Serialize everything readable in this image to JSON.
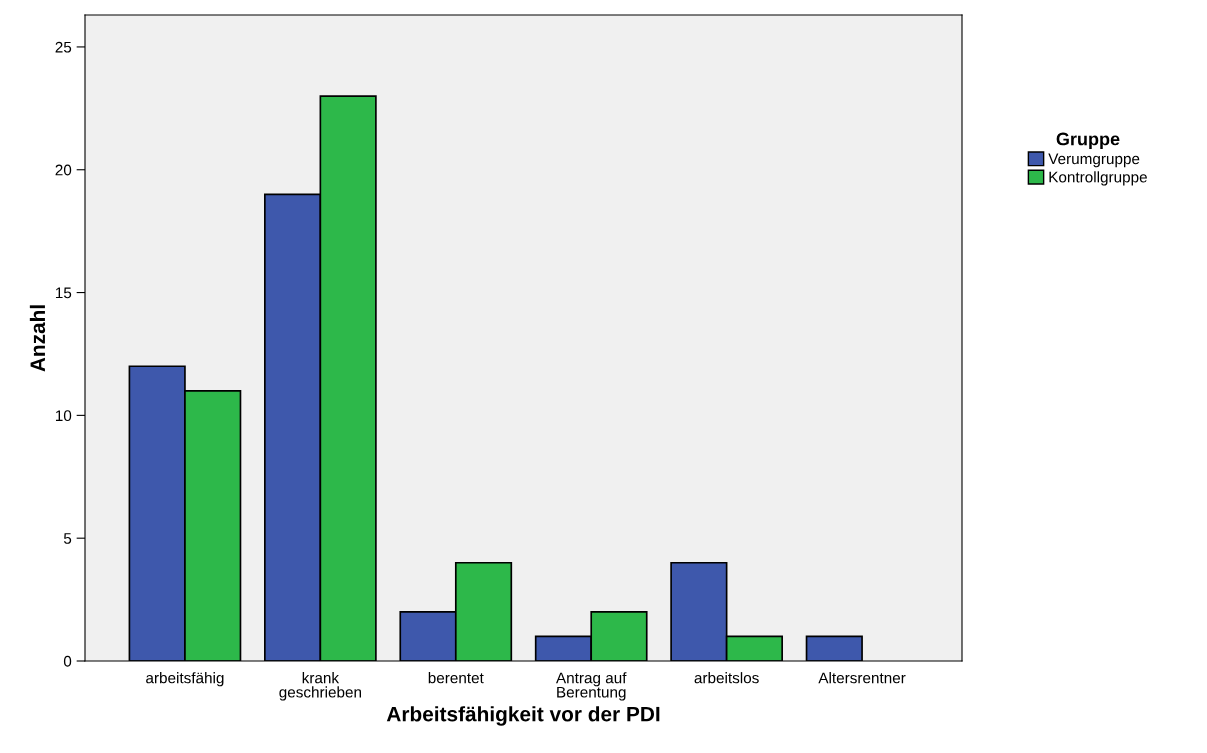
{
  "chart_data": {
    "type": "bar",
    "xlabel": "Arbeitsfähigkeit vor der PDI",
    "ylabel": "Anzahl",
    "legend_title": "Gruppe",
    "categories": [
      "arbeitsfähig",
      "krank\ngeschrieben",
      "berentet",
      "Antrag auf\nBerentung",
      "arbeitslos",
      "Altersrentner"
    ],
    "series": [
      {
        "name": "Verumgruppe",
        "color": "#3e58ac",
        "values": [
          12,
          19,
          2,
          1,
          4,
          1
        ]
      },
      {
        "name": "Kontrollgruppe",
        "color": "#2db84a",
        "values": [
          11,
          23,
          4,
          2,
          1,
          null
        ]
      }
    ],
    "ylim": [
      0,
      26.3
    ],
    "yticks": [
      0,
      5,
      10,
      15,
      20,
      25
    ],
    "grid": false,
    "legend": "right"
  }
}
